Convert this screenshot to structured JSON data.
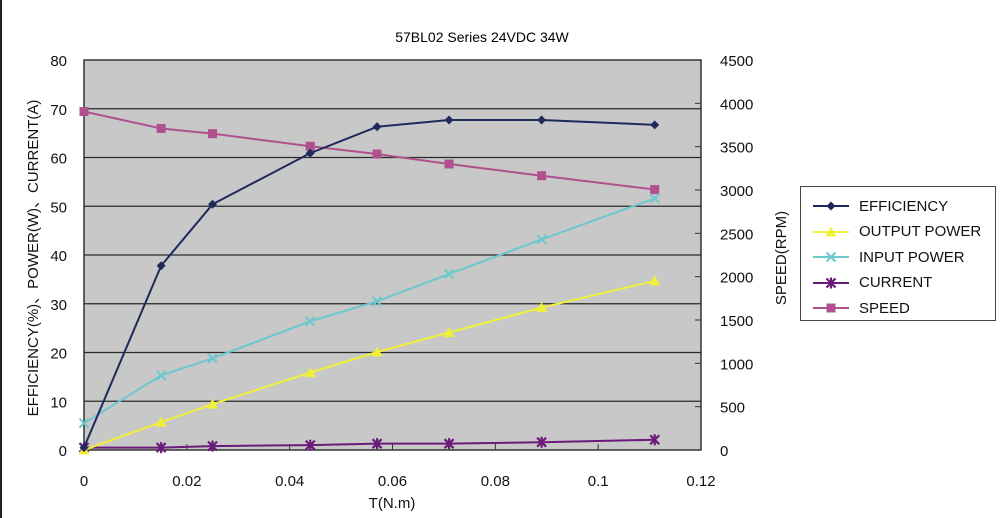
{
  "chart_data": {
    "type": "line",
    "title": "57BL02 Series 24VDC 34W",
    "xlabel": "T(N.m)",
    "ylabel": "EFFICIENCY(%)、POWER(W)、CURRENT(A)",
    "y2label": "SPEED(RPM)",
    "xlim": [
      0,
      0.12
    ],
    "ylim": [
      0,
      80
    ],
    "y2lim": [
      0,
      4500
    ],
    "x_ticks": [
      "0",
      "0.02",
      "0.04",
      "0.06",
      "0.08",
      "0.1",
      "0.12"
    ],
    "y_ticks": [
      "0",
      "10",
      "20",
      "30",
      "40",
      "50",
      "60",
      "70",
      "80"
    ],
    "y2_ticks": [
      "0",
      "500",
      "1000",
      "1500",
      "2000",
      "2500",
      "3000",
      "3500",
      "4000",
      "4500"
    ],
    "grid": true,
    "background": "#c8c8c8",
    "legend_position": "right",
    "x": [
      0,
      0.015,
      0.025,
      0.044,
      0.057,
      0.071,
      0.089,
      0.111
    ],
    "series": [
      {
        "name": "EFFICIENCY",
        "axis": "left",
        "marker": "diamond",
        "color": "#1f2a5c",
        "values": [
          0.5,
          37.8,
          50.4,
          60.9,
          66.3,
          67.7,
          67.7,
          66.7
        ]
      },
      {
        "name": "OUTPUT POWER",
        "axis": "left",
        "marker": "triangle",
        "color": "#f0f03a",
        "values": [
          0,
          5.7,
          9.4,
          15.9,
          20.1,
          24.1,
          29.2,
          34.7
        ]
      },
      {
        "name": "INPUT POWER",
        "axis": "left",
        "marker": "x",
        "color": "#6cc8cc",
        "values": [
          5.5,
          15.3,
          18.8,
          26.4,
          30.5,
          36.1,
          43.2,
          51.6
        ]
      },
      {
        "name": "CURRENT",
        "axis": "left",
        "marker": "asterisk",
        "color": "#6a1a78",
        "values": [
          0.5,
          0.5,
          0.8,
          1.0,
          1.3,
          1.3,
          1.6,
          2.1
        ]
      },
      {
        "name": "SPEED",
        "axis": "right",
        "marker": "square",
        "color": "#b0508f",
        "values": [
          3905,
          3710,
          3650,
          3505,
          3415,
          3300,
          3165,
          3005
        ]
      }
    ]
  }
}
